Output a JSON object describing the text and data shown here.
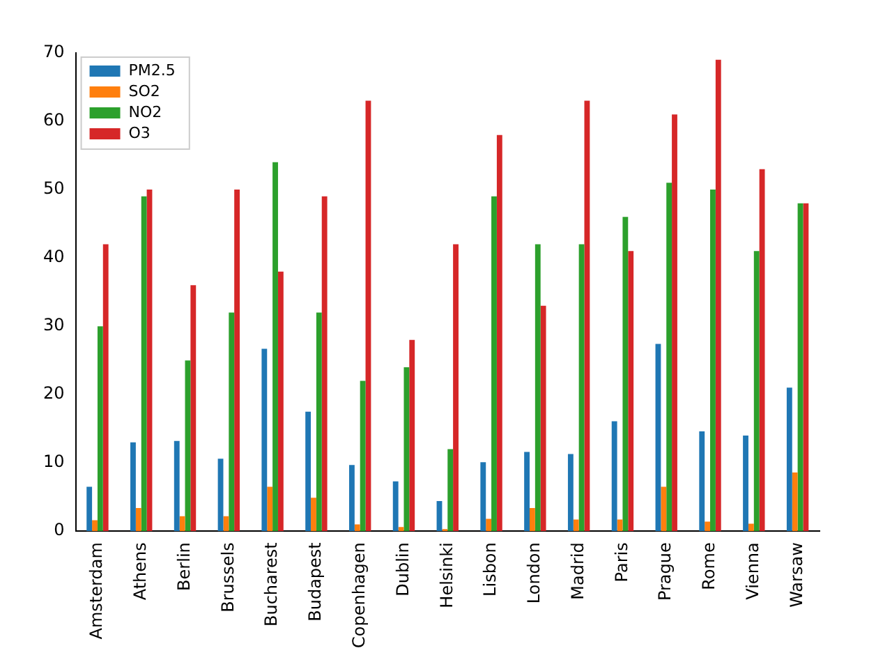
{
  "chart_data": {
    "type": "bar",
    "categories": [
      "Amsterdam",
      "Athens",
      "Berlin",
      "Brussels",
      "Bucharest",
      "Budapest",
      "Copenhagen",
      "Dublin",
      "Helsinki",
      "Lisbon",
      "London",
      "Madrid",
      "Paris",
      "Prague",
      "Rome",
      "Vienna",
      "Warsaw"
    ],
    "series": [
      {
        "name": "PM2.5",
        "color": "#1f77b4",
        "values": [
          6.5,
          13,
          13.2,
          10.6,
          26.7,
          17.5,
          9.7,
          7.3,
          4.4,
          10.1,
          11.6,
          11.3,
          16.1,
          27.4,
          14.6,
          14,
          21
        ]
      },
      {
        "name": "SO2",
        "color": "#ff7f0e",
        "values": [
          1.6,
          3.4,
          2.2,
          2.2,
          6.5,
          4.9,
          1,
          0.6,
          0.3,
          1.8,
          3.4,
          1.7,
          1.7,
          6.5,
          1.4,
          1.1,
          8.6
        ]
      },
      {
        "name": "NO2",
        "color": "#2ca02c",
        "values": [
          30,
          49,
          25,
          32,
          54,
          32,
          22,
          24,
          12,
          49,
          42,
          42,
          46,
          51,
          50,
          41,
          48
        ]
      },
      {
        "name": "O3",
        "color": "#d62728",
        "values": [
          42,
          50,
          36,
          50,
          38,
          49,
          63,
          28,
          42,
          58,
          33,
          63,
          41,
          61,
          69,
          53,
          48
        ]
      }
    ],
    "ylim": [
      0,
      70
    ],
    "yticks": [
      0,
      10,
      20,
      30,
      40,
      50,
      60,
      70
    ],
    "grid": false,
    "legend": "top left"
  }
}
